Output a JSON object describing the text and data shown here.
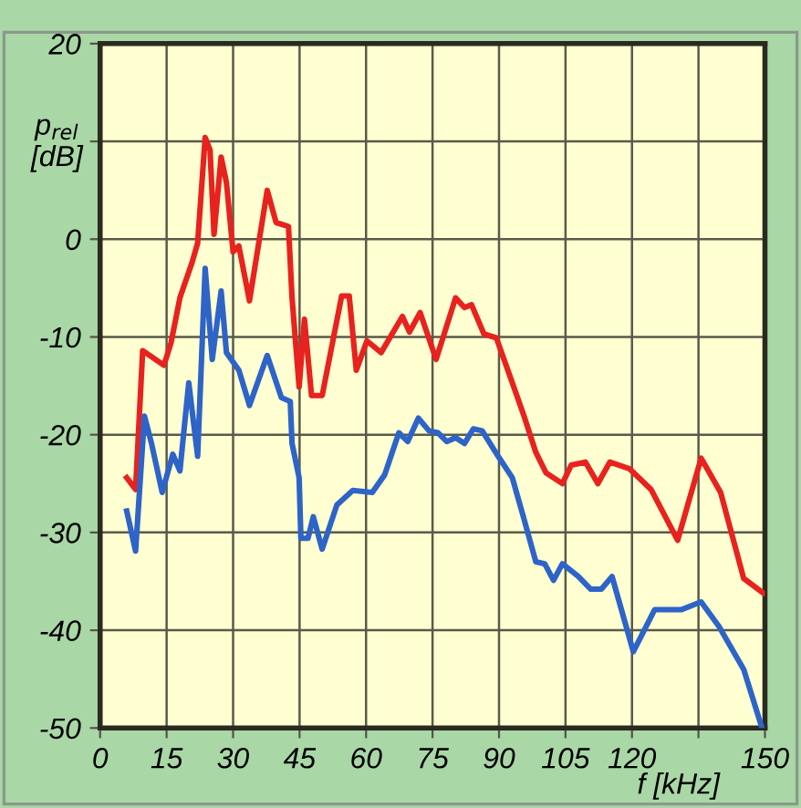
{
  "chart_data": {
    "type": "line",
    "xlabel": "f [kHz]",
    "ylabel": "p$_{rel}$\n[dB]",
    "xlim": [
      0,
      150
    ],
    "ylim": [
      -50,
      20
    ],
    "xticks": [
      0,
      15,
      30,
      45,
      60,
      75,
      90,
      105,
      120,
      {
        "value": 135,
        "label": null
      },
      150
    ],
    "yticks": [
      -50,
      -40,
      -30,
      -20,
      -10,
      0,
      {
        "value": 10,
        "label": null
      },
      20
    ],
    "grid": true,
    "line_style": "solid",
    "marker": "none",
    "series": [
      {
        "color": "#e8221e",
        "x": [
          6,
          8,
          9.6,
          14.4,
          16,
          18,
          20.8,
          22,
          23.7,
          24.8,
          25.7,
          27.3,
          28.5,
          30,
          31.3,
          33.7,
          37.7,
          39.7,
          42.5,
          43.3,
          44.9,
          46.1,
          47.7,
          50.1,
          54.5,
          56.2,
          57.8,
          60.2,
          63.4,
          68.2,
          69.8,
          72.2,
          75.8,
          80.2,
          82.2,
          83.8,
          86.6,
          89.4,
          93,
          95.5,
          98.3,
          100.6,
          104.3,
          106.3,
          109.5,
          112.3,
          115,
          119.5,
          124.3,
          130.3,
          135.6,
          140,
          145.2,
          149.6
        ],
        "values": [
          -24.4,
          -25.6,
          -11.4,
          -12.9,
          -10.6,
          -6,
          -2.3,
          -0.4,
          10.4,
          9.1,
          0.5,
          8.4,
          5.8,
          -1.3,
          -0.7,
          -6.3,
          5,
          1.7,
          1.3,
          -6,
          -15.1,
          -8.2,
          -16,
          -16,
          -5.8,
          -5.8,
          -13.4,
          -10.4,
          -11.6,
          -7.9,
          -9.5,
          -7.5,
          -12.3,
          -6,
          -7,
          -6.7,
          -9.7,
          -10.1,
          -14.7,
          -17.9,
          -21.8,
          -23.9,
          -25,
          -23.1,
          -22.8,
          -25,
          -22.8,
          -23.5,
          -25.6,
          -30.8,
          -22.4,
          -25.9,
          -34.7,
          -36.2
        ]
      },
      {
        "color": "#2e64c8",
        "x": [
          6,
          8,
          10,
          11.6,
          14,
          16.4,
          18,
          20,
          22,
          23.7,
          25.3,
          27.3,
          28.5,
          31.3,
          33.7,
          37.7,
          40.9,
          42.9,
          43.3,
          44.9,
          45.3,
          46.9,
          48.1,
          50.1,
          53.4,
          57,
          61.4,
          64.2,
          67.4,
          69.4,
          71.8,
          74.2,
          76.2,
          78.2,
          80.2,
          82.2,
          84.2,
          86.2,
          89.8,
          93,
          95.5,
          98.3,
          100.3,
          102.3,
          104.3,
          107.9,
          110.7,
          113.1,
          115.5,
          120.3,
          125.1,
          131.1,
          135.6,
          139.6,
          145.2,
          149.2
        ],
        "values": [
          -27.8,
          -31.9,
          -18.1,
          -20.9,
          -25.9,
          -22,
          -23.7,
          -14.7,
          -22.2,
          -3,
          -12.3,
          -5.3,
          -11.6,
          -13.4,
          -17,
          -11.9,
          -16.2,
          -16.6,
          -20.9,
          -24.4,
          -30.6,
          -30.6,
          -28.4,
          -31.7,
          -27.2,
          -25.7,
          -25.9,
          -24.1,
          -19.8,
          -20.7,
          -18.3,
          -19.6,
          -19.8,
          -20.7,
          -20.3,
          -20.9,
          -19.4,
          -19.6,
          -22.2,
          -24.4,
          -28.4,
          -33,
          -33.2,
          -34.9,
          -33.2,
          -34.5,
          -35.8,
          -35.8,
          -34.5,
          -42.2,
          -37.9,
          -37.9,
          -37.1,
          -39.6,
          -44,
          -49.8
        ]
      }
    ]
  }
}
